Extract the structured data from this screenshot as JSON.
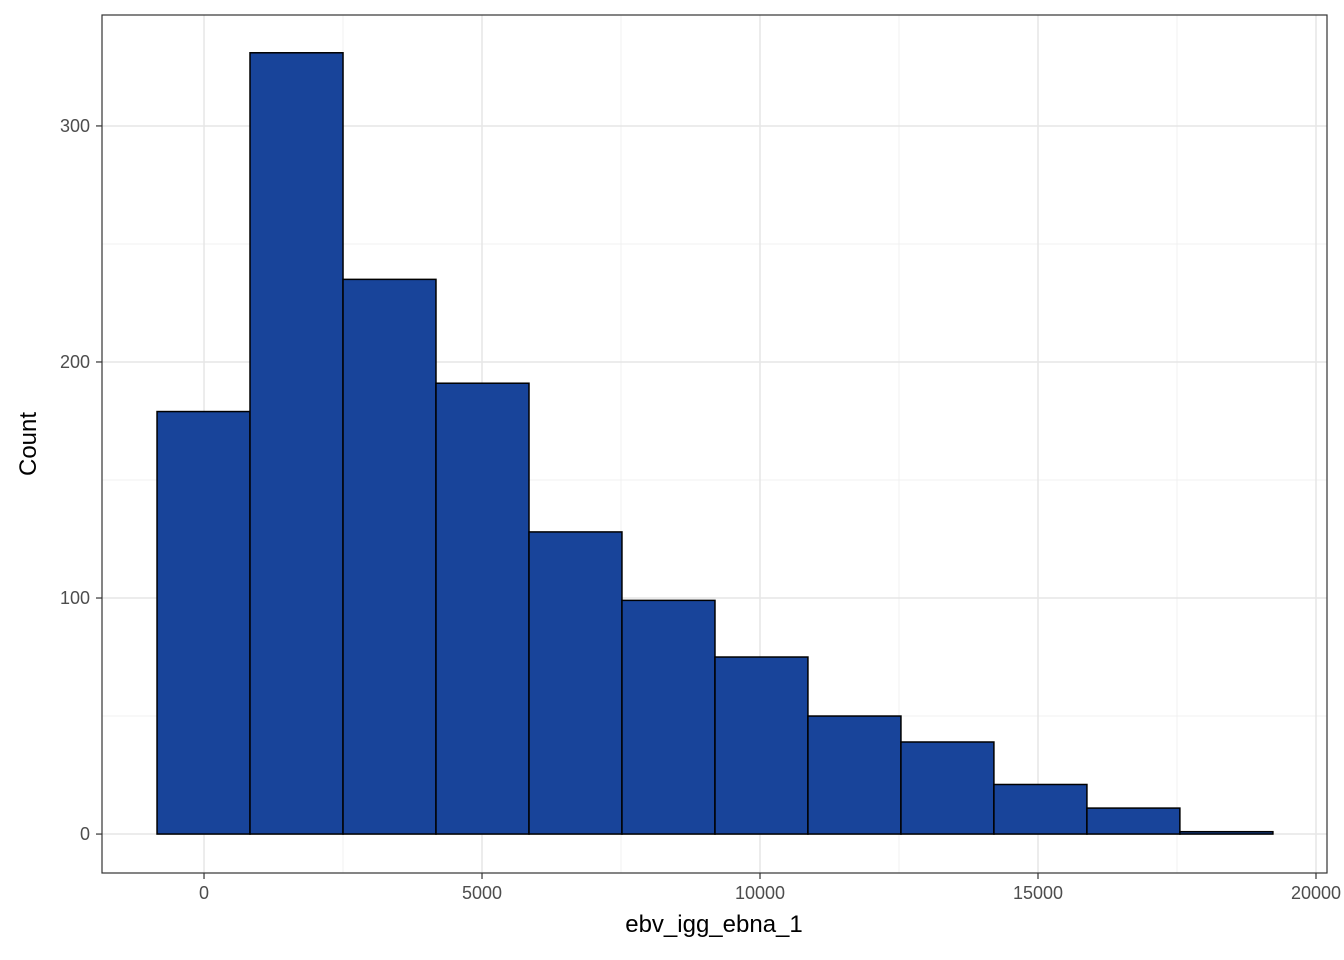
{
  "chart_data": {
    "type": "histogram",
    "x_label": "ebv_igg_ebna_1",
    "y_label": "Count",
    "bins": [
      -845,
      827,
      2500,
      4172,
      5845,
      7517,
      9190,
      10862,
      12535,
      14207,
      15880,
      17552,
      19225
    ],
    "counts": [
      179,
      331,
      235,
      191,
      128,
      99,
      75,
      50,
      39,
      21,
      11,
      1
    ],
    "color": "#18449a",
    "xlim": [
      -1835,
      20198
    ],
    "xticks": [
      0,
      5000,
      10000,
      15000,
      20000
    ],
    "ylim": [
      -16.5,
      347
    ],
    "yticks": [
      0,
      100,
      200,
      300
    ],
    "grid": true,
    "minor_grid": true
  }
}
